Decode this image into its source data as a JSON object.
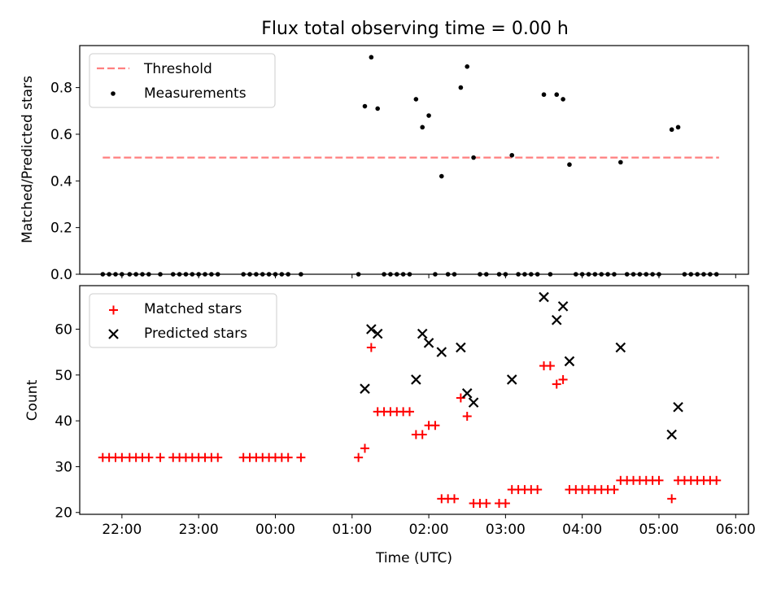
{
  "chart_data": [
    {
      "type": "scatter",
      "title": "Flux total observing time = 0.00 h",
      "xlabel": "",
      "ylabel": "Matched/Predicted stars",
      "x_axis_type": "time",
      "xlim": [
        "21:27",
        "06:10"
      ],
      "ylim": [
        0,
        0.98
      ],
      "y_ticks": [
        "0.0",
        "0.2",
        "0.4",
        "0.6",
        "0.8"
      ],
      "y_tick_values": [
        0,
        0.2,
        0.4,
        0.6,
        0.8
      ],
      "legend_position": "upper left",
      "series": [
        {
          "name": "Threshold",
          "kind": "line",
          "style": "dashed",
          "color": "#ff7f7f",
          "x": [
            "21:45",
            "05:47"
          ],
          "y": [
            0.5,
            0.5
          ]
        },
        {
          "name": "Measurements",
          "kind": "scatter",
          "color": "#000000",
          "points": [
            [
              "21:45",
              0
            ],
            [
              "21:50",
              0
            ],
            [
              "21:55",
              0
            ],
            [
              "22:00",
              0
            ],
            [
              "22:06",
              0
            ],
            [
              "22:11",
              0
            ],
            [
              "22:16",
              0
            ],
            [
              "22:21",
              0
            ],
            [
              "22:30",
              0
            ],
            [
              "22:40",
              0
            ],
            [
              "22:45",
              0
            ],
            [
              "22:50",
              0
            ],
            [
              "22:55",
              0
            ],
            [
              "23:00",
              0
            ],
            [
              "23:05",
              0
            ],
            [
              "23:10",
              0
            ],
            [
              "23:15",
              0
            ],
            [
              "23:35",
              0
            ],
            [
              "23:40",
              0
            ],
            [
              "23:45",
              0
            ],
            [
              "23:50",
              0
            ],
            [
              "23:55",
              0
            ],
            [
              "00:00",
              0
            ],
            [
              "00:05",
              0
            ],
            [
              "00:10",
              0
            ],
            [
              "00:20",
              0
            ],
            [
              "01:05",
              0
            ],
            [
              "01:10",
              0.72
            ],
            [
              "01:15",
              0.93
            ],
            [
              "01:20",
              0.71
            ],
            [
              "01:25",
              0
            ],
            [
              "01:30",
              0
            ],
            [
              "01:35",
              0
            ],
            [
              "01:40",
              0
            ],
            [
              "01:45",
              0
            ],
            [
              "01:50",
              0.75
            ],
            [
              "01:55",
              0.63
            ],
            [
              "02:00",
              0.68
            ],
            [
              "02:05",
              0
            ],
            [
              "02:10",
              0.42
            ],
            [
              "02:15",
              0
            ],
            [
              "02:20",
              0
            ],
            [
              "02:25",
              0.8
            ],
            [
              "02:30",
              0.89
            ],
            [
              "02:35",
              0.5
            ],
            [
              "02:40",
              0
            ],
            [
              "02:45",
              0
            ],
            [
              "02:55",
              0
            ],
            [
              "03:00",
              0
            ],
            [
              "03:05",
              0.51
            ],
            [
              "03:10",
              0
            ],
            [
              "03:15",
              0
            ],
            [
              "03:20",
              0
            ],
            [
              "03:25",
              0
            ],
            [
              "03:30",
              0.77
            ],
            [
              "03:35",
              0
            ],
            [
              "03:40",
              0.77
            ],
            [
              "03:45",
              0.75
            ],
            [
              "03:50",
              0.47
            ],
            [
              "03:55",
              0
            ],
            [
              "04:00",
              0
            ],
            [
              "04:05",
              0
            ],
            [
              "04:10",
              0
            ],
            [
              "04:15",
              0
            ],
            [
              "04:20",
              0
            ],
            [
              "04:25",
              0
            ],
            [
              "04:30",
              0.48
            ],
            [
              "04:35",
              0
            ],
            [
              "04:40",
              0
            ],
            [
              "04:45",
              0
            ],
            [
              "04:50",
              0
            ],
            [
              "04:55",
              0
            ],
            [
              "05:00",
              0
            ],
            [
              "05:10",
              0.62
            ],
            [
              "05:15",
              0.63
            ],
            [
              "05:20",
              0
            ],
            [
              "05:25",
              0
            ],
            [
              "05:30",
              0
            ],
            [
              "05:35",
              0
            ],
            [
              "05:40",
              0
            ],
            [
              "05:45",
              0
            ]
          ]
        }
      ]
    },
    {
      "type": "scatter",
      "title": "",
      "xlabel": "Time (UTC)",
      "ylabel": "Count",
      "x_axis_type": "time",
      "xlim": [
        "21:27",
        "06:10"
      ],
      "ylim": [
        19.6,
        69.5
      ],
      "x_ticks": [
        "22:00",
        "23:00",
        "00:00",
        "01:00",
        "02:00",
        "03:00",
        "04:00",
        "05:00",
        "06:00"
      ],
      "y_ticks": [
        "20",
        "30",
        "40",
        "50",
        "60"
      ],
      "y_tick_values": [
        20,
        30,
        40,
        50,
        60
      ],
      "legend_position": "upper left",
      "series": [
        {
          "name": "Matched stars",
          "marker": "+",
          "color": "#ff0000",
          "points": [
            [
              "21:45",
              32
            ],
            [
              "21:50",
              32
            ],
            [
              "21:55",
              32
            ],
            [
              "22:00",
              32
            ],
            [
              "22:06",
              32
            ],
            [
              "22:11",
              32
            ],
            [
              "22:16",
              32
            ],
            [
              "22:21",
              32
            ],
            [
              "22:30",
              32
            ],
            [
              "22:40",
              32
            ],
            [
              "22:45",
              32
            ],
            [
              "22:50",
              32
            ],
            [
              "22:55",
              32
            ],
            [
              "23:00",
              32
            ],
            [
              "23:05",
              32
            ],
            [
              "23:10",
              32
            ],
            [
              "23:15",
              32
            ],
            [
              "23:35",
              32
            ],
            [
              "23:40",
              32
            ],
            [
              "23:45",
              32
            ],
            [
              "23:50",
              32
            ],
            [
              "23:55",
              32
            ],
            [
              "00:00",
              32
            ],
            [
              "00:05",
              32
            ],
            [
              "00:10",
              32
            ],
            [
              "00:20",
              32
            ],
            [
              "01:05",
              32
            ],
            [
              "01:10",
              34
            ],
            [
              "01:15",
              56
            ],
            [
              "01:20",
              42
            ],
            [
              "01:25",
              42
            ],
            [
              "01:30",
              42
            ],
            [
              "01:35",
              42
            ],
            [
              "01:40",
              42
            ],
            [
              "01:45",
              42
            ],
            [
              "01:50",
              37
            ],
            [
              "01:55",
              37
            ],
            [
              "02:00",
              39
            ],
            [
              "02:05",
              39
            ],
            [
              "02:10",
              23
            ],
            [
              "02:15",
              23
            ],
            [
              "02:20",
              23
            ],
            [
              "02:25",
              45
            ],
            [
              "02:30",
              41
            ],
            [
              "02:35",
              22
            ],
            [
              "02:40",
              22
            ],
            [
              "02:45",
              22
            ],
            [
              "02:55",
              22
            ],
            [
              "03:00",
              22
            ],
            [
              "03:05",
              25
            ],
            [
              "03:10",
              25
            ],
            [
              "03:15",
              25
            ],
            [
              "03:20",
              25
            ],
            [
              "03:25",
              25
            ],
            [
              "03:30",
              52
            ],
            [
              "03:35",
              52
            ],
            [
              "03:40",
              48
            ],
            [
              "03:45",
              49
            ],
            [
              "03:50",
              25
            ],
            [
              "03:55",
              25
            ],
            [
              "04:00",
              25
            ],
            [
              "04:05",
              25
            ],
            [
              "04:10",
              25
            ],
            [
              "04:15",
              25
            ],
            [
              "04:20",
              25
            ],
            [
              "04:25",
              25
            ],
            [
              "04:30",
              27
            ],
            [
              "04:35",
              27
            ],
            [
              "04:40",
              27
            ],
            [
              "04:45",
              27
            ],
            [
              "04:50",
              27
            ],
            [
              "04:55",
              27
            ],
            [
              "05:00",
              27
            ],
            [
              "05:10",
              23
            ],
            [
              "05:15",
              27
            ],
            [
              "05:20",
              27
            ],
            [
              "05:25",
              27
            ],
            [
              "05:30",
              27
            ],
            [
              "05:35",
              27
            ],
            [
              "05:40",
              27
            ],
            [
              "05:45",
              27
            ]
          ]
        },
        {
          "name": "Predicted stars",
          "marker": "x",
          "color": "#000000",
          "points": [
            [
              "01:10",
              47
            ],
            [
              "01:15",
              60
            ],
            [
              "01:20",
              59
            ],
            [
              "01:50",
              49
            ],
            [
              "01:55",
              59
            ],
            [
              "02:00",
              57
            ],
            [
              "02:10",
              55
            ],
            [
              "02:25",
              56
            ],
            [
              "02:30",
              46
            ],
            [
              "02:35",
              44
            ],
            [
              "03:05",
              49
            ],
            [
              "03:30",
              67
            ],
            [
              "03:40",
              62
            ],
            [
              "03:45",
              65
            ],
            [
              "03:50",
              53
            ],
            [
              "04:30",
              56
            ],
            [
              "05:10",
              37
            ],
            [
              "05:15",
              43
            ]
          ]
        }
      ]
    }
  ]
}
